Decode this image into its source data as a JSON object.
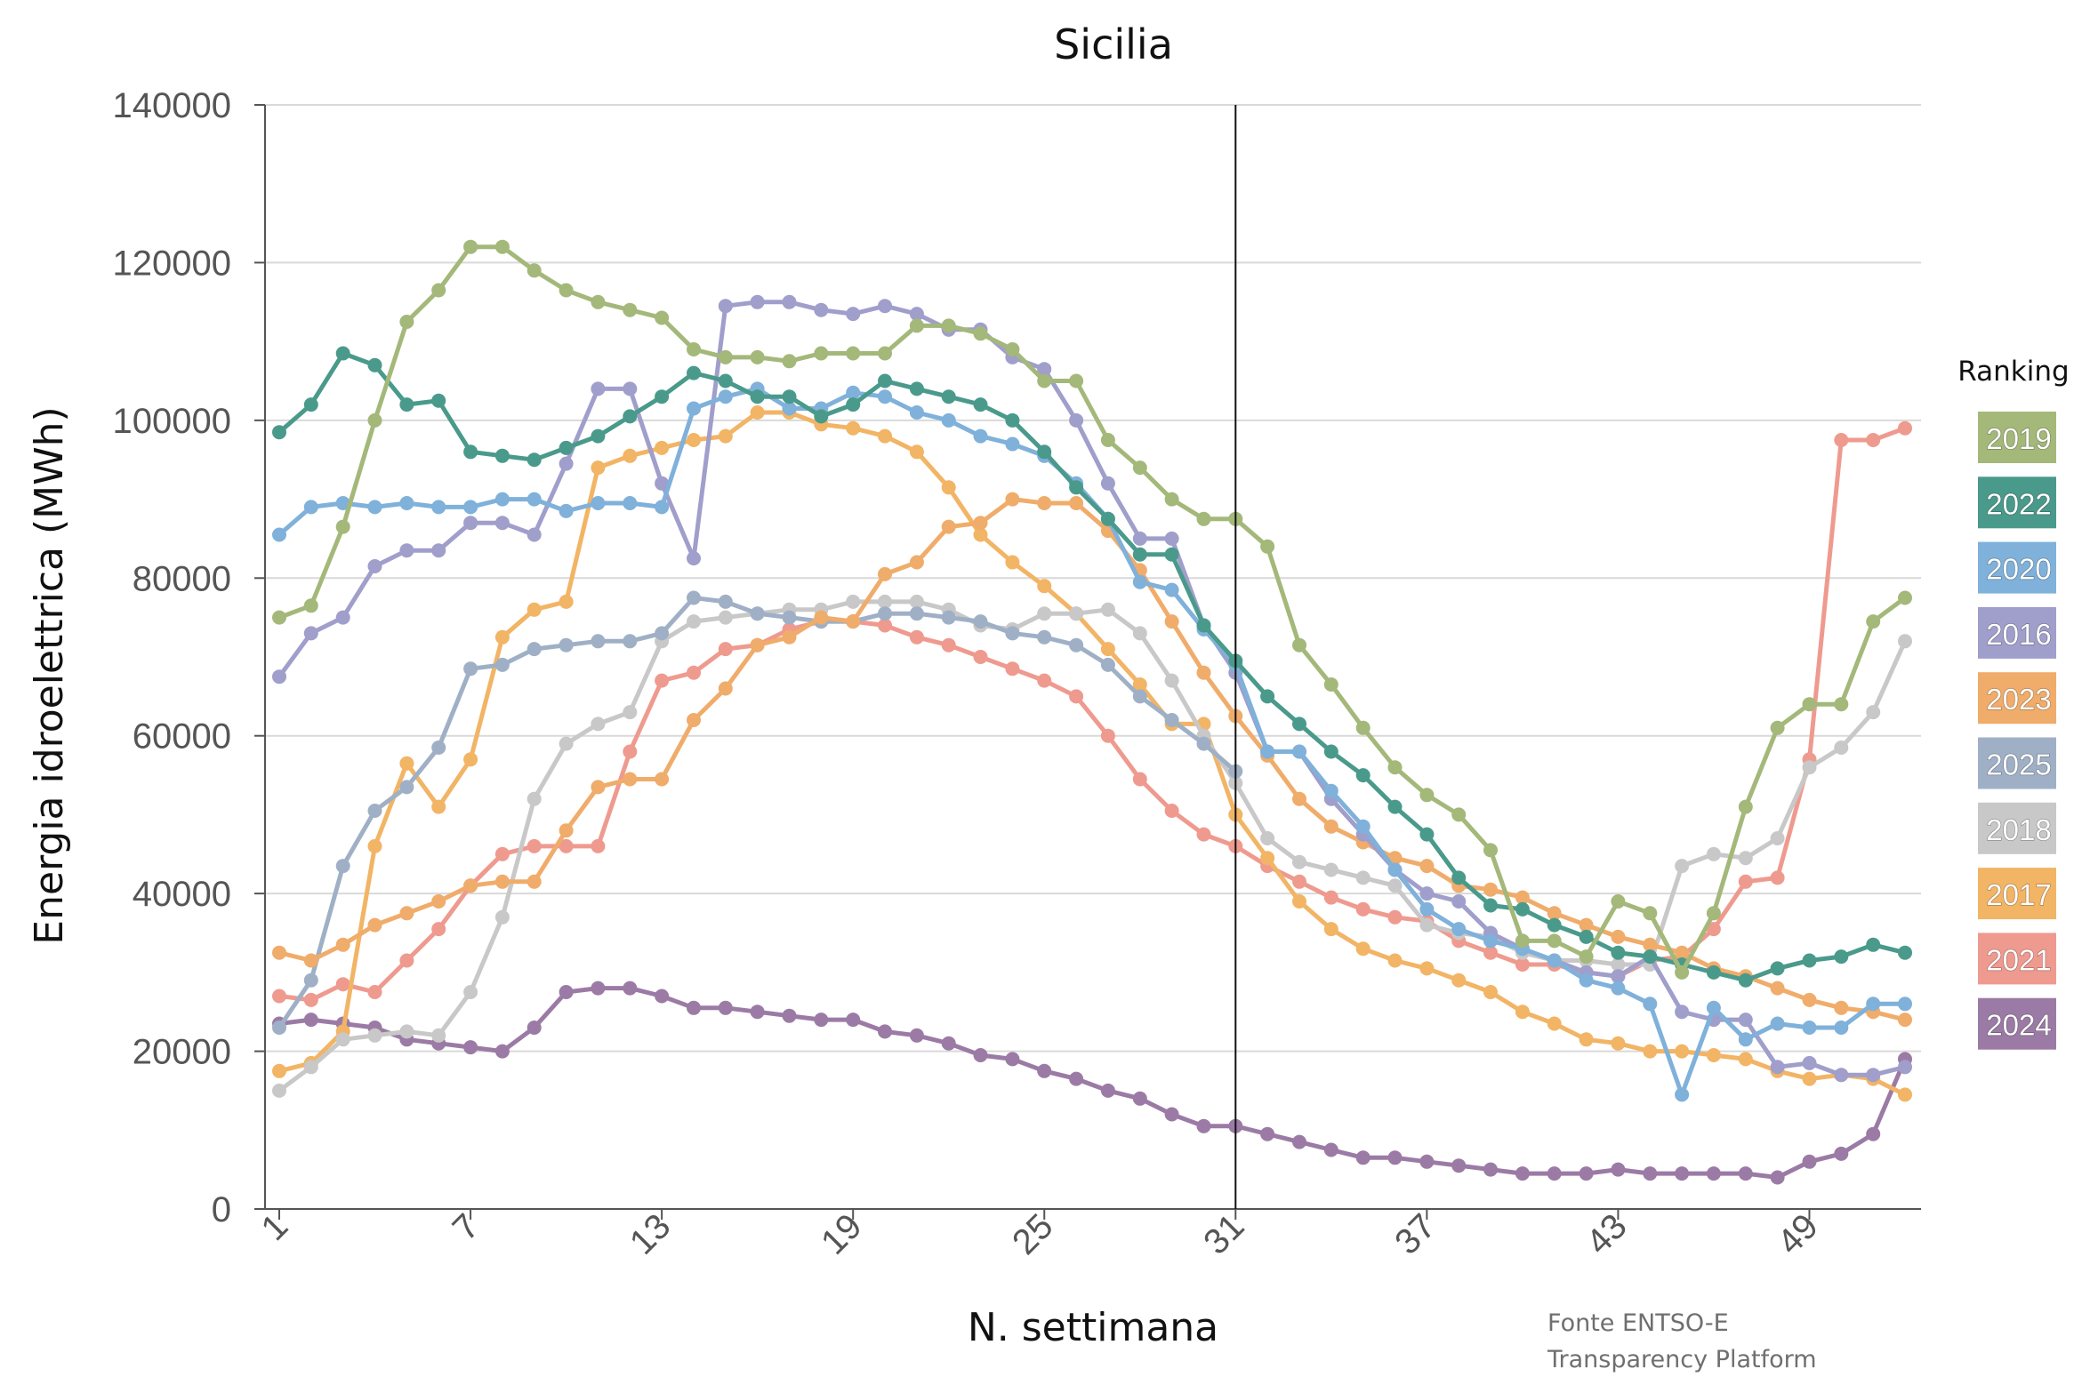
{
  "chart_data": {
    "type": "line",
    "title": "Sicilia",
    "xlabel": "N. settimana",
    "ylabel": "Energia idroelettrica (MWh)",
    "source": [
      "Fonte ENTSO-E",
      "Transparency Platform"
    ],
    "legend_title": "Ranking",
    "legend_position": "right",
    "grid": "horizontal",
    "ylim": [
      0,
      140000
    ],
    "yticks": [
      "0",
      "20000",
      "40000",
      "60000",
      "80000",
      "100000",
      "120000",
      "140000"
    ],
    "xlim": [
      1,
      52
    ],
    "xticks": [
      "1",
      "7",
      "13",
      "19",
      "25",
      "31",
      "37",
      "43",
      "49"
    ],
    "reference_line_week": 31,
    "series": [
      {
        "name": "2019",
        "color": "#a4b87a",
        "values": [
          75000,
          76500,
          86500,
          100000,
          112500,
          116500,
          122000,
          122000,
          119000,
          116500,
          115000,
          114000,
          113000,
          109000,
          108000,
          108000,
          107500,
          108500,
          108500,
          108500,
          112000,
          112000,
          111000,
          109000,
          105000,
          105000,
          97500,
          94000,
          90000,
          87500,
          87500,
          84000,
          71500,
          66500,
          61000,
          56000,
          52500,
          50000,
          45500,
          34000,
          34000,
          32000,
          39000,
          37500,
          30000,
          37500,
          51000,
          61000,
          64000,
          64000,
          74500,
          77500
        ]
      },
      {
        "name": "2022",
        "color": "#4a9a8c",
        "values": [
          98500,
          102000,
          108500,
          107000,
          102000,
          102500,
          96000,
          95500,
          95000,
          96500,
          98000,
          100500,
          103000,
          106000,
          105000,
          103000,
          103000,
          100500,
          102000,
          105000,
          104000,
          103000,
          102000,
          100000,
          96000,
          91500,
          87500,
          83000,
          83000,
          74000,
          69500,
          65000,
          61500,
          58000,
          55000,
          51000,
          47500,
          42000,
          38500,
          38000,
          36000,
          34500,
          32500,
          32000,
          31000,
          30000,
          29000,
          30500,
          31500,
          32000,
          33500,
          32500
        ]
      },
      {
        "name": "2020",
        "color": "#7fb1da",
        "values": [
          85500,
          89000,
          89500,
          89000,
          89500,
          89000,
          89000,
          90000,
          90000,
          88500,
          89500,
          89500,
          89000,
          101500,
          103000,
          104000,
          101500,
          101500,
          103500,
          103000,
          101000,
          100000,
          98000,
          97000,
          95500,
          92000,
          87500,
          79500,
          78500,
          73500,
          69000,
          58000,
          58000,
          53000,
          48500,
          43000,
          38000,
          35500,
          34000,
          33000,
          31500,
          29000,
          28000,
          26000,
          14500,
          25500,
          21500,
          23500,
          23000,
          23000,
          26000,
          26000
        ]
      },
      {
        "name": "2016",
        "color": "#a09ecb",
        "values": [
          67500,
          73000,
          75000,
          81500,
          83500,
          83500,
          87000,
          87000,
          85500,
          94500,
          104000,
          104000,
          92000,
          82500,
          114500,
          115000,
          115000,
          114000,
          113500,
          114500,
          113500,
          111500,
          111500,
          108000,
          106500,
          100000,
          92000,
          85000,
          85000,
          74000,
          68000,
          58000,
          58000,
          52000,
          47500,
          43000,
          40000,
          39000,
          35000,
          33000,
          31500,
          30000,
          29500,
          32000,
          25000,
          24000,
          24000,
          18000,
          18500,
          17000,
          17000,
          18000
        ]
      },
      {
        "name": "2023",
        "color": "#f0ac6a",
        "values": [
          32500,
          31500,
          33500,
          36000,
          37500,
          39000,
          41000,
          41500,
          41500,
          48000,
          53500,
          54500,
          54500,
          62000,
          66000,
          71500,
          72500,
          75000,
          74500,
          80500,
          82000,
          86500,
          87000,
          90000,
          89500,
          89500,
          86000,
          81000,
          74500,
          68000,
          62500,
          57500,
          52000,
          48500,
          46500,
          44500,
          43500,
          41000,
          40500,
          39500,
          37500,
          36000,
          34500,
          33500,
          32500,
          30500,
          29500,
          28000,
          26500,
          25500,
          25000,
          24000
        ]
      },
      {
        "name": "2025",
        "color": "#9fb0c6",
        "values": [
          23000,
          29000,
          43500,
          50500,
          53500,
          58500,
          68500,
          69000,
          71000,
          71500,
          72000,
          72000,
          73000,
          77500,
          77000,
          75500,
          75000,
          74500,
          74500,
          75500,
          75500,
          75000,
          74500,
          73000,
          72500,
          71500,
          69000,
          65000,
          62000,
          59000,
          55500
        ]
      },
      {
        "name": "2018",
        "color": "#c8c8c8",
        "values": [
          15000,
          18000,
          21500,
          22000,
          22500,
          22000,
          27500,
          37000,
          52000,
          59000,
          61500,
          63000,
          72000,
          74500,
          75000,
          75500,
          76000,
          76000,
          77000,
          77000,
          77000,
          76000,
          74000,
          73500,
          75500,
          75500,
          76000,
          73000,
          67000,
          60000,
          54000,
          47000,
          44000,
          43000,
          42000,
          41000,
          36000,
          35000,
          34500,
          32500,
          31500,
          31500,
          31000,
          31000,
          43500,
          45000,
          44500,
          47000,
          56000,
          58500,
          63000,
          72000
        ]
      },
      {
        "name": "2017",
        "color": "#f2b465",
        "values": [
          17500,
          18500,
          22500,
          46000,
          56500,
          51000,
          57000,
          72500,
          76000,
          77000,
          94000,
          95500,
          96500,
          97500,
          98000,
          101000,
          101000,
          99500,
          99000,
          98000,
          96000,
          91500,
          85500,
          82000,
          79000,
          75500,
          71000,
          66500,
          61500,
          61500,
          50000,
          44500,
          39000,
          35500,
          33000,
          31500,
          30500,
          29000,
          27500,
          25000,
          23500,
          21500,
          21000,
          20000,
          20000,
          19500,
          19000,
          17500,
          16500,
          17000,
          16500,
          14500
        ]
      },
      {
        "name": "2021",
        "color": "#ef9a8f",
        "values": [
          27000,
          26500,
          28500,
          27500,
          31500,
          35500,
          41000,
          45000,
          46000,
          46000,
          46000,
          58000,
          67000,
          68000,
          71000,
          71500,
          73500,
          74500,
          74500,
          74000,
          72500,
          71500,
          70000,
          68500,
          67000,
          65000,
          60000,
          54500,
          50500,
          47500,
          46000,
          43500,
          41500,
          39500,
          38000,
          37000,
          36500,
          34000,
          32500,
          31000,
          31000,
          30000,
          29500,
          31500,
          32000,
          35500,
          41500,
          42000,
          57000,
          97500,
          97500,
          99000
        ]
      },
      {
        "name": "2024",
        "color": "#9b7ba5",
        "values": [
          23500,
          24000,
          23500,
          23000,
          21500,
          21000,
          20500,
          20000,
          23000,
          27500,
          28000,
          28000,
          27000,
          25500,
          25500,
          25000,
          24500,
          24000,
          24000,
          22500,
          22000,
          21000,
          19500,
          19000,
          17500,
          16500,
          15000,
          14000,
          12000,
          10500,
          10500,
          9500,
          8500,
          7500,
          6500,
          6500,
          6000,
          5500,
          5000,
          4500,
          4500,
          4500,
          5000,
          4500,
          4500,
          4500,
          4500,
          4000,
          6000,
          7000,
          9500,
          19000
        ]
      }
    ]
  }
}
